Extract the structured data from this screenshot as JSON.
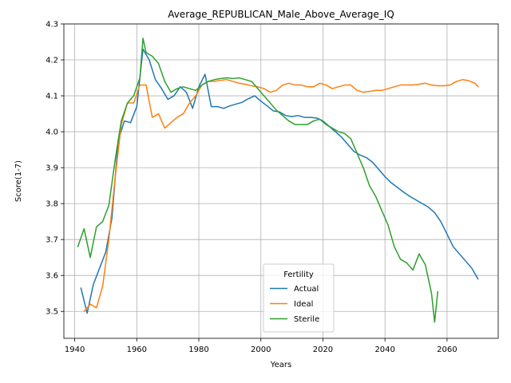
{
  "chart_data": {
    "type": "line",
    "title": "Average_REPUBLICAN_Male_Above_Average_IQ",
    "xlabel": "Years",
    "ylabel": "Score(1-7)",
    "xlim": [
      1936.5,
      2076.5
    ],
    "ylim": [
      3.425,
      4.3
    ],
    "xticks": [
      1940,
      1960,
      1980,
      2000,
      2020,
      2040,
      2060
    ],
    "yticks": [
      3.5,
      3.6,
      3.7,
      3.8,
      3.9,
      4.0,
      4.1,
      4.2,
      4.3
    ],
    "xtick_labels": [
      "1940",
      "1960",
      "1980",
      "2000",
      "2020",
      "2040",
      "2060"
    ],
    "ytick_labels": [
      "3.5",
      "3.6",
      "3.7",
      "3.8",
      "3.9",
      "4.0",
      "4.1",
      "4.2",
      "4.3"
    ],
    "grid": true,
    "legend": {
      "title": "Fertility",
      "position": "lower center"
    },
    "series": [
      {
        "name": "Actual",
        "color": "#1f77b4",
        "x": [
          1942,
          1944,
          1946,
          1948,
          1950,
          1952,
          1954,
          1956,
          1958,
          1960,
          1962,
          1964,
          1966,
          1968,
          1970,
          1972,
          1974,
          1976,
          1978,
          1980,
          1982,
          1984,
          1986,
          1988,
          1990,
          1992,
          1994,
          1996,
          1998,
          2000,
          2002,
          2004,
          2006,
          2008,
          2010,
          2012,
          2014,
          2016,
          2018,
          2020,
          2022,
          2024,
          2026,
          2028,
          2030,
          2032,
          2034,
          2036,
          2038,
          2040,
          2042,
          2044,
          2046,
          2048,
          2050,
          2052,
          2054,
          2056,
          2058,
          2060,
          2062,
          2064,
          2066,
          2068,
          2070
        ],
        "y": [
          3.565,
          3.495,
          3.575,
          3.62,
          3.665,
          3.76,
          3.975,
          4.03,
          4.025,
          4.07,
          4.23,
          4.2,
          4.145,
          4.12,
          4.09,
          4.1,
          4.125,
          4.11,
          4.065,
          4.125,
          4.16,
          4.07,
          4.07,
          4.065,
          4.072,
          4.077,
          4.082,
          4.092,
          4.1,
          4.085,
          4.072,
          4.058,
          4.055,
          4.045,
          4.042,
          4.045,
          4.04,
          4.04,
          4.038,
          4.03,
          4.015,
          4.0,
          3.985,
          3.965,
          3.945,
          3.935,
          3.928,
          3.915,
          3.895,
          3.875,
          3.858,
          3.845,
          3.832,
          3.82,
          3.81,
          3.8,
          3.79,
          3.775,
          3.75,
          3.715,
          3.68,
          3.66,
          3.64,
          3.62,
          3.59
        ]
      },
      {
        "name": "Ideal",
        "color": "#ff7f0e",
        "x": [
          1943,
          1945,
          1947,
          1949,
          1951,
          1953,
          1955,
          1957,
          1959,
          1961,
          1963,
          1965,
          1967,
          1969,
          1971,
          1973,
          1975,
          1977,
          1979,
          1981,
          1983,
          1985,
          1987,
          1989,
          1991,
          1993,
          1995,
          1997,
          1999,
          2001,
          2003,
          2005,
          2007,
          2009,
          2011,
          2013,
          2015,
          2017,
          2019,
          2021,
          2023,
          2025,
          2027,
          2029,
          2031,
          2033,
          2035,
          2037,
          2039,
          2041,
          2043,
          2045,
          2047,
          2049,
          2051,
          2053,
          2055,
          2057,
          2059,
          2061,
          2063,
          2065,
          2067,
          2069,
          2070
        ],
        "y": [
          3.5,
          3.52,
          3.51,
          3.57,
          3.7,
          3.87,
          4.02,
          4.08,
          4.08,
          4.13,
          4.13,
          4.04,
          4.05,
          4.01,
          4.025,
          4.04,
          4.05,
          4.08,
          4.1,
          4.13,
          4.14,
          4.14,
          4.143,
          4.145,
          4.14,
          4.135,
          4.132,
          4.128,
          4.125,
          4.12,
          4.11,
          4.115,
          4.13,
          4.135,
          4.13,
          4.13,
          4.125,
          4.125,
          4.135,
          4.13,
          4.12,
          4.125,
          4.13,
          4.13,
          4.115,
          4.11,
          4.112,
          4.115,
          4.115,
          4.12,
          4.125,
          4.13,
          4.13,
          4.13,
          4.132,
          4.135,
          4.13,
          4.128,
          4.128,
          4.13,
          4.14,
          4.145,
          4.142,
          4.135,
          4.125
        ]
      },
      {
        "name": "Sterile",
        "color": "#2ca02c",
        "x": [
          1941,
          1943,
          1945,
          1947,
          1949,
          1951,
          1953,
          1955,
          1957,
          1959,
          1961,
          1962,
          1963,
          1965,
          1967,
          1969,
          1971,
          1973,
          1975,
          1977,
          1979,
          1981,
          1983,
          1985,
          1987,
          1989,
          1991,
          1993,
          1995,
          1997,
          1999,
          2001,
          2003,
          2005,
          2007,
          2009,
          2011,
          2013,
          2015,
          2017,
          2019,
          2021,
          2023,
          2025,
          2027,
          2029,
          2031,
          2033,
          2035,
          2037,
          2039,
          2041,
          2043,
          2045,
          2047,
          2049,
          2051,
          2053,
          2055,
          2056,
          2057
        ],
        "y": [
          3.68,
          3.73,
          3.65,
          3.735,
          3.75,
          3.795,
          3.92,
          4.03,
          4.08,
          4.1,
          4.15,
          4.26,
          4.22,
          4.21,
          4.19,
          4.14,
          4.11,
          4.12,
          4.125,
          4.12,
          4.115,
          4.13,
          4.14,
          4.145,
          4.148,
          4.15,
          4.148,
          4.15,
          4.145,
          4.14,
          4.12,
          4.1,
          4.08,
          4.06,
          4.045,
          4.03,
          4.02,
          4.02,
          4.02,
          4.03,
          4.035,
          4.02,
          4.01,
          4.0,
          3.995,
          3.98,
          3.94,
          3.9,
          3.85,
          3.82,
          3.78,
          3.74,
          3.68,
          3.645,
          3.635,
          3.615,
          3.66,
          3.63,
          3.55,
          3.47,
          3.555
        ]
      }
    ]
  }
}
